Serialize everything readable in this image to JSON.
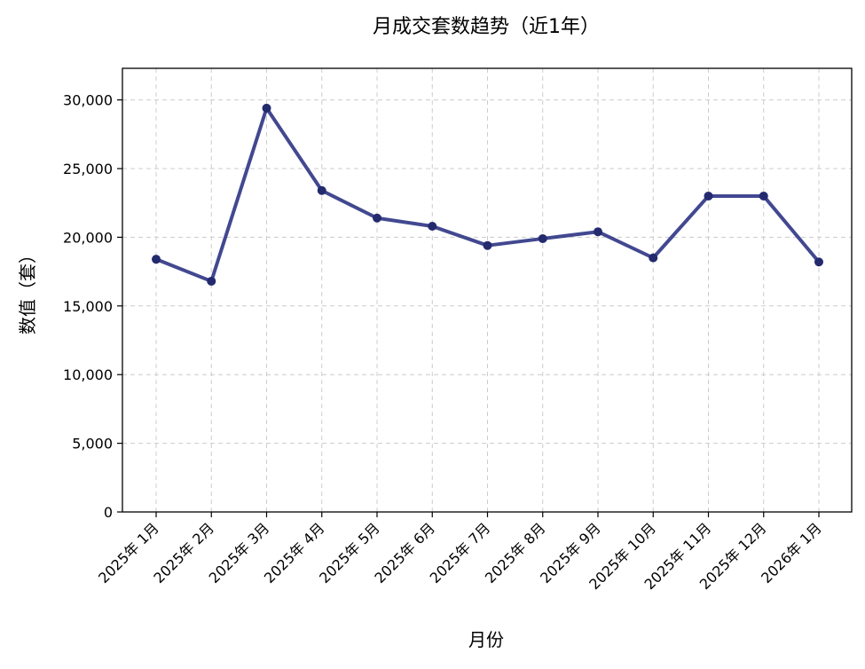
{
  "chart_data": {
    "type": "line",
    "title": "月成交套数趋势（近1年）",
    "xlabel": "月份",
    "ylabel": "数值（套）",
    "categories": [
      "2025年 1月",
      "2025年 2月",
      "2025年 3月",
      "2025年 4月",
      "2025年 5月",
      "2025年 6月",
      "2025年 7月",
      "2025年 8月",
      "2025年 9月",
      "2025年 10月",
      "2025年 11月",
      "2025年 12月",
      "2026年 1月"
    ],
    "series": [
      {
        "values": [
          18400,
          16800,
          29400,
          23400,
          21400,
          20800,
          19400,
          19900,
          20400,
          18500,
          23000,
          23000,
          18200
        ],
        "color": "#2e3484"
      }
    ],
    "ylim": [
      0,
      32300
    ],
    "yticks": [
      0,
      5000,
      10000,
      15000,
      20000,
      25000,
      30000
    ],
    "ytick_labels": [
      "0",
      "5,000",
      "10,000",
      "15,000",
      "20,000",
      "25,000",
      "30,000"
    ],
    "grid": true,
    "grid_color": "#cccccc",
    "marker_color": "#232a6e"
  }
}
